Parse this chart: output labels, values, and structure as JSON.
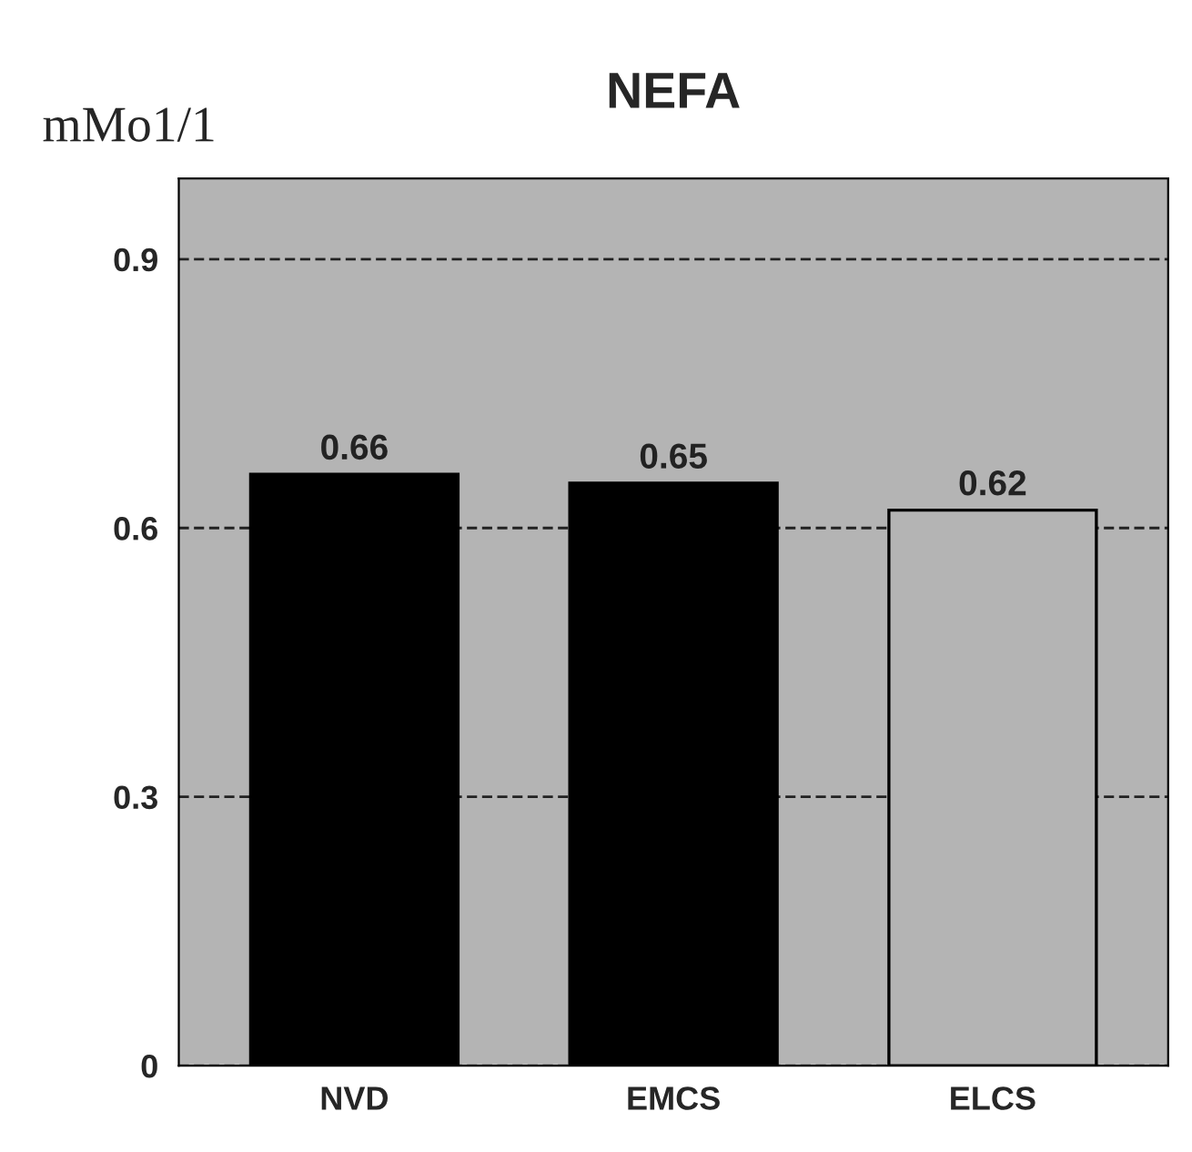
{
  "chart_data": {
    "type": "bar",
    "title": "NEFA",
    "ylabel": "mMo1/1",
    "categories": [
      "NVD",
      "EMCS",
      "ELCS"
    ],
    "values": [
      0.66,
      0.65,
      0.62
    ],
    "colors": [
      "#000000",
      "#000000",
      "#b4b4b4"
    ],
    "ylim": [
      0,
      0.99
    ],
    "yticks": [
      0,
      0.3,
      0.6,
      0.9
    ],
    "grid": "y",
    "data_labels": true
  }
}
